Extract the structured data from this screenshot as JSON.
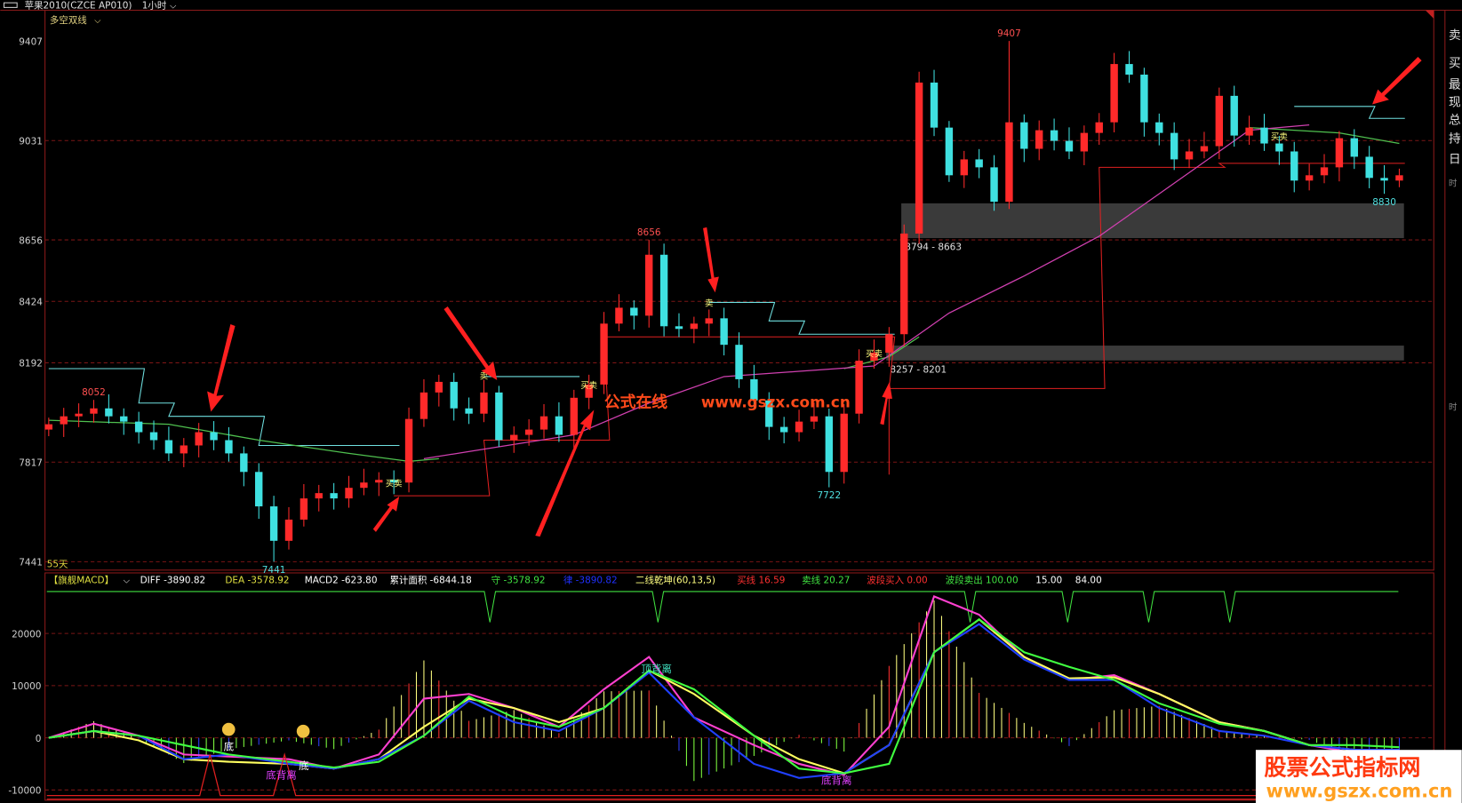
{
  "window": {
    "title": "苹果2010(CZCE AP010)",
    "period": "1小时",
    "indicator_main": "多空双线",
    "days_label": "55天"
  },
  "right_panel": {
    "chars": [
      "卖",
      "买",
      "最",
      "现",
      "总",
      "持",
      "日",
      "时",
      "时"
    ]
  },
  "colors": {
    "up": "#ff2a2a",
    "down": "#3fe0e0",
    "grid": "#7a1515",
    "cyan_line": "#6fe0e0",
    "red_line": "#e02020",
    "ma_green": "#4fc04f",
    "ma_magenta": "#d040b0"
  },
  "chart_data": [
    {
      "type": "candlestick",
      "y_ticks": [
        9407,
        9031,
        8656,
        8424,
        8192,
        7817,
        7441
      ],
      "ylim": [
        7441,
        9407
      ],
      "open_first": 7940,
      "close": [
        7960,
        7990,
        8000,
        8020,
        7990,
        7970,
        7930,
        7900,
        7850,
        7880,
        7930,
        7900,
        7850,
        7780,
        7650,
        7520,
        7600,
        7680,
        7700,
        7680,
        7720,
        7740,
        7750,
        7740,
        7980,
        8080,
        8120,
        8020,
        8000,
        8080,
        7900,
        7920,
        7940,
        7990,
        7920,
        8060,
        8110,
        8340,
        8400,
        8370,
        8600,
        8330,
        8320,
        8340,
        8360,
        8260,
        8130,
        8050,
        7950,
        7930,
        7970,
        7990,
        7780,
        8000,
        8200,
        8230,
        8300,
        8680,
        9250,
        9080,
        8900,
        8960,
        8930,
        8800,
        9100,
        9000,
        9070,
        9030,
        8990,
        9060,
        9100,
        9320,
        9280,
        9100,
        9060,
        8960,
        8990,
        9010,
        9200,
        9050,
        9080,
        9020,
        8990,
        8880,
        8900,
        8930,
        9040,
        8970,
        8890,
        8880,
        8900
      ],
      "extreme_labels": [
        {
          "bar": 3,
          "value": 8052,
          "kind": "high",
          "text": "8052"
        },
        {
          "bar": 15,
          "value": 7441,
          "kind": "low",
          "text": "7441"
        },
        {
          "bar": 40,
          "value": 8656,
          "kind": "high",
          "text": "8656"
        },
        {
          "bar": 52,
          "value": 7722,
          "kind": "low",
          "text": "7722"
        },
        {
          "bar": 64,
          "value": 9407,
          "kind": "high",
          "text": "9407"
        },
        {
          "bar": 89,
          "value": 8830,
          "kind": "low",
          "text": "8830"
        }
      ],
      "cyan_steps": [
        [
          0,
          6,
          8170
        ],
        [
          6,
          8,
          8040
        ],
        [
          8,
          14,
          7990
        ],
        [
          14,
          23,
          7880
        ],
        [
          29,
          35,
          8140
        ],
        [
          44,
          48,
          8420
        ],
        [
          48,
          50,
          8350
        ],
        [
          50,
          56,
          8300
        ],
        [
          83,
          88,
          9160
        ],
        [
          88,
          90,
          9115
        ]
      ],
      "red_steps": [
        [
          23,
          29,
          7690
        ],
        [
          29,
          37,
          7900
        ],
        [
          37,
          56,
          8290
        ],
        [
          56,
          70,
          8095
        ],
        [
          70,
          78,
          8930
        ],
        [
          78,
          90,
          8945
        ]
      ],
      "ma_green": [
        [
          [
            0,
            7975
          ],
          [
            8,
            7960
          ],
          [
            14,
            7900
          ],
          [
            20,
            7850
          ],
          [
            24,
            7820
          ],
          [
            26,
            7830
          ]
        ],
        [
          [
            53,
            8170
          ],
          [
            56,
            8215
          ],
          [
            58,
            8290
          ]
        ],
        [
          [
            80,
            9080
          ],
          [
            86,
            9060
          ],
          [
            90,
            9020
          ]
        ]
      ],
      "ma_magenta": [
        [
          25,
          7830
        ],
        [
          35,
          7920
        ],
        [
          40,
          8040
        ],
        [
          45,
          8140
        ],
        [
          50,
          8160
        ],
        [
          55,
          8180
        ],
        [
          60,
          8380
        ],
        [
          65,
          8520
        ],
        [
          70,
          8670
        ],
        [
          75,
          8870
        ],
        [
          80,
          9070
        ],
        [
          84,
          9090
        ]
      ],
      "zones": [
        {
          "from_bar": 57,
          "to_bar": 90,
          "high": 8794,
          "low": 8663,
          "label": "8794 - 8663"
        },
        {
          "from_bar": 56,
          "to_bar": 90,
          "high": 8257,
          "low": 8201,
          "label": "8257 - 8201"
        }
      ],
      "signals": [
        {
          "bar": 23,
          "value": 7740,
          "text": "买卖"
        },
        {
          "bar": 29,
          "value": 8145,
          "text": "卖"
        },
        {
          "bar": 36,
          "value": 8110,
          "text": "买卖"
        },
        {
          "bar": 44,
          "value": 8420,
          "text": "卖"
        },
        {
          "bar": 55,
          "value": 8230,
          "text": "买卖"
        },
        {
          "bar": 82,
          "value": 9050,
          "text": "买卖"
        }
      ]
    },
    {
      "type": "line",
      "title": "【旗舰MACD】",
      "y_ticks": [
        20000,
        10000,
        0,
        -10000
      ],
      "x_bars": [
        0,
        3,
        6,
        9,
        12,
        16,
        19,
        22,
        25,
        28,
        31,
        34,
        37,
        40,
        43,
        47,
        50,
        53,
        56,
        59,
        62,
        65,
        68,
        71,
        74,
        78,
        81,
        84,
        87,
        90
      ],
      "series": [
        {
          "color": "#ff40d0",
          "values": [
            0,
            2700,
            400,
            -3200,
            -3600,
            -4100,
            -5900,
            -3200,
            7500,
            8400,
            5700,
            2100,
            9300,
            15500,
            3900,
            -1400,
            -5000,
            -7100,
            2100,
            27100,
            23600,
            15500,
            11100,
            12000,
            8400,
            3000,
            1300,
            -1400,
            -2900,
            -3200
          ]
        },
        {
          "color": "#ffff60",
          "values": [
            0,
            1300,
            -500,
            -4100,
            -4600,
            -5000,
            -5900,
            -4100,
            2100,
            7500,
            5700,
            3000,
            5700,
            12900,
            8400,
            400,
            -4100,
            -6800,
            -1400,
            16400,
            22700,
            15500,
            11400,
            11600,
            8400,
            3000,
            1300,
            -1400,
            -2300,
            -3200
          ]
        },
        {
          "color": "#2040ff",
          "values": [
            0,
            1300,
            400,
            -4100,
            -3200,
            -5000,
            -5900,
            -4100,
            400,
            7100,
            3000,
            1300,
            5700,
            12500,
            3900,
            -5000,
            -7700,
            -6800,
            -1400,
            16400,
            21800,
            15000,
            11100,
            11100,
            5700,
            1300,
            400,
            -1400,
            -2300,
            -2300
          ]
        },
        {
          "color": "#40ff40",
          "values": [
            0,
            1300,
            400,
            -1400,
            -3200,
            -4600,
            -5700,
            -4600,
            400,
            7900,
            3900,
            2100,
            5700,
            12900,
            9300,
            400,
            -5900,
            -6800,
            -5000,
            16400,
            22700,
            16400,
            13600,
            11100,
            6600,
            2700,
            1300,
            -1400,
            -1400,
            -1800
          ]
        }
      ],
      "top_line_dips": [
        29.4,
        40.6,
        61.4,
        67.9,
        73.3,
        78.7
      ],
      "annotations": [
        {
          "bar": 15.5,
          "value": -7800,
          "text": "底背离",
          "color": "#e040ff"
        },
        {
          "bar": 52.5,
          "value": -8800,
          "text": "底背离",
          "color": "#e040ff"
        },
        {
          "bar": 40.5,
          "value": 12500,
          "text": "顶背离",
          "color": "#40e0c0"
        },
        {
          "bar": 12,
          "value": -2400,
          "text": "底",
          "color": "#ffffff"
        },
        {
          "bar": 17,
          "value": -6000,
          "text": "底",
          "color": "#ffffff"
        }
      ],
      "legend": [
        {
          "text": "DIFF -3890.82",
          "color": "#ffffff"
        },
        {
          "text": "DEA -3578.92",
          "color": "#e0e040"
        },
        {
          "text": "MACD2 -623.80",
          "color": "#ffffff"
        },
        {
          "text": "累计面积 -6844.18",
          "color": "#ffffff"
        },
        {
          "text": "守 -3578.92",
          "color": "#40e040"
        },
        {
          "text": "律 -3890.82",
          "color": "#2030ff"
        },
        {
          "text": "二线乾坤(60,13,5)",
          "color": "#ffff80"
        },
        {
          "text": "买线 16.59",
          "color": "#ff3030"
        },
        {
          "text": "卖线 20.27",
          "color": "#40e040"
        },
        {
          "text": "波段买入 0.00",
          "color": "#ff3030"
        },
        {
          "text": "波段卖出 100.00",
          "color": "#40e040"
        },
        {
          "text": "15.00",
          "color": "#ffffff"
        },
        {
          "text": "84.00",
          "color": "#ffffff"
        }
      ]
    }
  ],
  "watermark": {
    "cn": "公式在线",
    "url": "www.gszx.com.cn"
  },
  "logo": {
    "cn": "股票公式指标网",
    "url": "www.gszx.com.cn"
  }
}
